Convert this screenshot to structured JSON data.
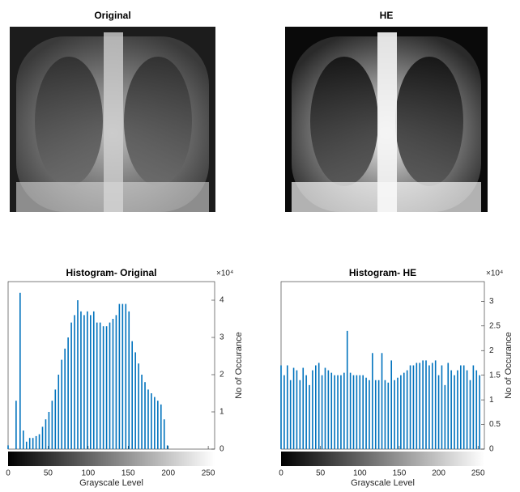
{
  "images": [
    {
      "title": "Original"
    },
    {
      "title": "HE"
    }
  ],
  "chart_data": [
    {
      "type": "bar",
      "title": "Histogram- Original",
      "xlabel": "Grayscale Level",
      "ylabel": "No of Occurance",
      "exponent_label": "×10⁴",
      "color": "#0072bd",
      "x": [
        0,
        10,
        15,
        19,
        23,
        27,
        31,
        35,
        39,
        43,
        47,
        51,
        55,
        59,
        63,
        67,
        71,
        75,
        79,
        83,
        87,
        91,
        95,
        99,
        103,
        107,
        111,
        115,
        119,
        123,
        127,
        131,
        135,
        139,
        143,
        147,
        151,
        155,
        159,
        163,
        167,
        171,
        175,
        179,
        183,
        187,
        191,
        195,
        199
      ],
      "values": [
        0.1,
        1.3,
        4.2,
        0.5,
        0.2,
        0.3,
        0.3,
        0.35,
        0.4,
        0.6,
        0.8,
        1.0,
        1.3,
        1.6,
        2.0,
        2.4,
        2.7,
        3.0,
        3.4,
        3.6,
        4.0,
        3.7,
        3.6,
        3.7,
        3.6,
        3.7,
        3.4,
        3.4,
        3.3,
        3.3,
        3.4,
        3.5,
        3.6,
        3.9,
        3.9,
        3.9,
        3.7,
        2.9,
        2.6,
        2.3,
        2.0,
        1.8,
        1.6,
        1.5,
        1.4,
        1.3,
        1.2,
        0.8,
        0.1
      ],
      "xlim": [
        0,
        258
      ],
      "ylim": [
        0,
        4.5
      ],
      "xticks": [
        0,
        50,
        100,
        150,
        200,
        250
      ],
      "yticks": [
        0,
        1,
        2,
        3,
        4
      ]
    },
    {
      "type": "bar",
      "title": "Histogram- HE",
      "xlabel": "Grayscale Level",
      "ylabel": "No of Occurance",
      "exponent_label": "×10⁴",
      "color": "#0072bd",
      "x": [
        0,
        4,
        8,
        12,
        16,
        20,
        24,
        28,
        32,
        36,
        40,
        44,
        48,
        52,
        56,
        60,
        64,
        68,
        72,
        76,
        80,
        84,
        88,
        92,
        96,
        100,
        104,
        108,
        112,
        116,
        120,
        124,
        128,
        132,
        136,
        140,
        144,
        148,
        152,
        156,
        160,
        164,
        168,
        172,
        176,
        180,
        184,
        188,
        192,
        196,
        200,
        204,
        208,
        212,
        216,
        220,
        224,
        228,
        232,
        236,
        240,
        244,
        248,
        252
      ],
      "values": [
        1.7,
        1.5,
        1.7,
        1.4,
        1.65,
        1.6,
        1.4,
        1.65,
        1.5,
        1.3,
        1.6,
        1.7,
        1.75,
        1.5,
        1.65,
        1.6,
        1.55,
        1.5,
        1.5,
        1.5,
        1.55,
        2.4,
        1.55,
        1.5,
        1.5,
        1.5,
        1.5,
        1.45,
        1.4,
        1.95,
        1.4,
        1.4,
        1.95,
        1.4,
        1.35,
        1.8,
        1.4,
        1.45,
        1.5,
        1.55,
        1.6,
        1.7,
        1.7,
        1.75,
        1.75,
        1.8,
        1.8,
        1.7,
        1.75,
        1.8,
        1.5,
        1.7,
        1.3,
        1.75,
        1.6,
        1.5,
        1.6,
        1.7,
        1.7,
        1.6,
        1.4,
        1.7,
        1.6,
        1.5
      ],
      "xlim": [
        0,
        258
      ],
      "ylim": [
        0,
        3.4
      ],
      "xticks": [
        0,
        50,
        100,
        150,
        200,
        250
      ],
      "yticks": [
        0,
        0.5,
        1,
        1.5,
        2,
        2.5,
        3
      ]
    }
  ]
}
